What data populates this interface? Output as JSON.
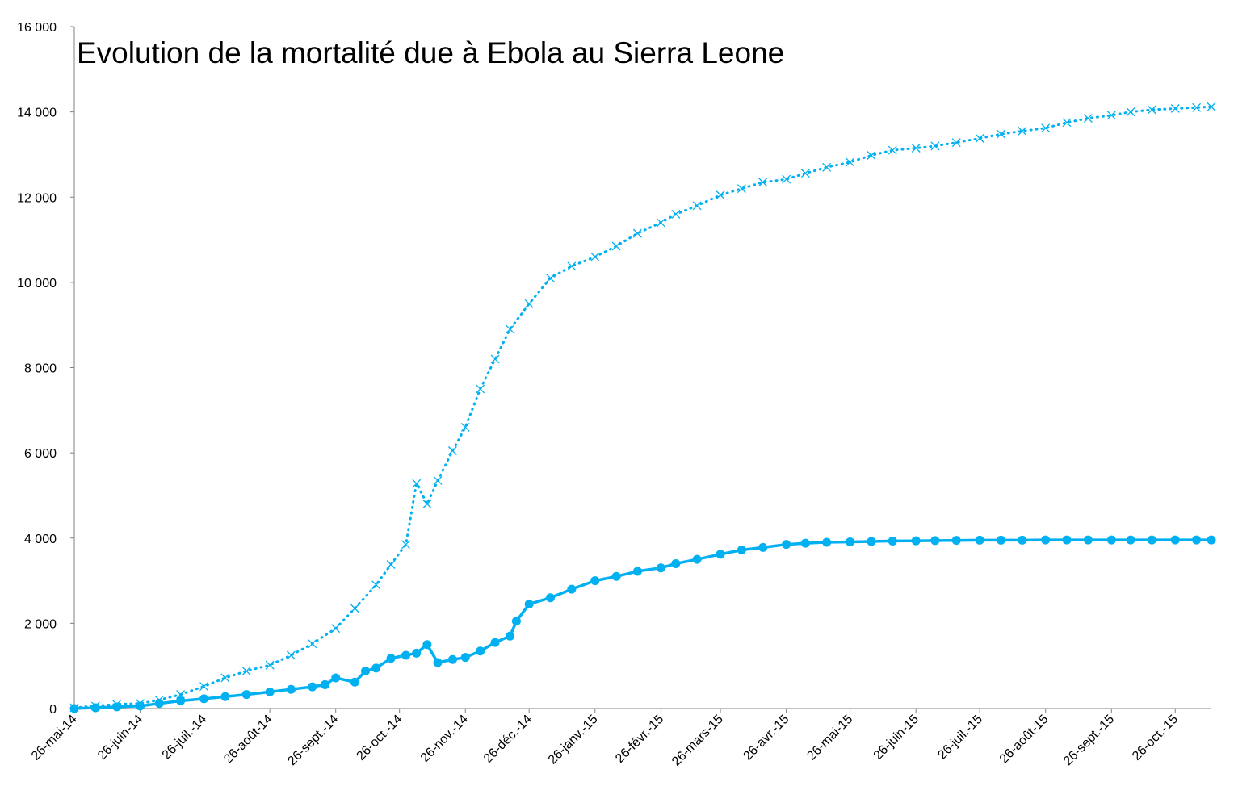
{
  "chart_data": {
    "type": "line",
    "title": "Evolution de la mortalité due à Ebola au Sierra Leone",
    "xlabel": "",
    "ylabel": "",
    "ylim": [
      0,
      16000
    ],
    "y_ticks": [
      0,
      2000,
      4000,
      6000,
      8000,
      10000,
      12000,
      14000,
      16000
    ],
    "y_tick_labels": [
      "0",
      "2 000",
      "4 000",
      "6 000",
      "8 000",
      "10 000",
      "12 000",
      "14 000",
      "16 000"
    ],
    "xlim": [
      "2014-05-26",
      "2015-11-12"
    ],
    "x_ticks": [
      "2014-05-26",
      "2014-06-26",
      "2014-07-26",
      "2014-08-26",
      "2014-09-26",
      "2014-10-26",
      "2014-11-26",
      "2014-12-26",
      "2015-01-26",
      "2015-02-26",
      "2015-03-26",
      "2015-04-26",
      "2015-05-26",
      "2015-06-26",
      "2015-07-26",
      "2015-08-26",
      "2015-09-26",
      "2015-10-26"
    ],
    "x_tick_labels": [
      "26-mai-14",
      "26-juin-14",
      "26-juil.-14",
      "26-août-14",
      "26-sept.-14",
      "26-oct.-14",
      "26-nov.-14",
      "26-déc.-14",
      "26-janv.-15",
      "26-févr.-15",
      "26-mars-15",
      "26-avr.-15",
      "26-mai-15",
      "26-juin-15",
      "26-juil.-15",
      "26-août-15",
      "26-sept.-15",
      "26-oct.-15"
    ],
    "grid": false,
    "legend": "none",
    "colors": {
      "series": "#00b0f0",
      "axis": "#808080"
    },
    "series": [
      {
        "style": "dotted-x",
        "x": [
          "2014-05-26",
          "2014-06-05",
          "2014-06-15",
          "2014-06-26",
          "2014-07-05",
          "2014-07-15",
          "2014-07-26",
          "2014-08-05",
          "2014-08-15",
          "2014-08-26",
          "2014-09-05",
          "2014-09-15",
          "2014-09-26",
          "2014-10-05",
          "2014-10-15",
          "2014-10-22",
          "2014-10-29",
          "2014-11-03",
          "2014-11-08",
          "2014-11-13",
          "2014-11-20",
          "2014-11-26",
          "2014-12-03",
          "2014-12-10",
          "2014-12-17",
          "2014-12-26",
          "2015-01-05",
          "2015-01-15",
          "2015-01-26",
          "2015-02-05",
          "2015-02-15",
          "2015-02-26",
          "2015-03-05",
          "2015-03-15",
          "2015-03-26",
          "2015-04-05",
          "2015-04-15",
          "2015-04-26",
          "2015-05-05",
          "2015-05-15",
          "2015-05-26",
          "2015-06-05",
          "2015-06-15",
          "2015-06-26",
          "2015-07-05",
          "2015-07-15",
          "2015-07-26",
          "2015-08-05",
          "2015-08-15",
          "2015-08-26",
          "2015-09-05",
          "2015-09-15",
          "2015-09-26",
          "2015-10-05",
          "2015-10-15",
          "2015-10-26",
          "2015-11-05",
          "2015-11-12"
        ],
        "y": [
          20,
          60,
          100,
          120,
          200,
          330,
          520,
          720,
          880,
          1020,
          1250,
          1520,
          1880,
          2350,
          2900,
          3380,
          3850,
          5280,
          4800,
          5350,
          6050,
          6600,
          7500,
          8200,
          8900,
          9500,
          10100,
          10380,
          10600,
          10850,
          11150,
          11400,
          11600,
          11800,
          12050,
          12200,
          12350,
          12420,
          12560,
          12700,
          12820,
          12980,
          13100,
          13150,
          13200,
          13280,
          13380,
          13480,
          13550,
          13620,
          13750,
          13850,
          13920,
          14000,
          14050,
          14080,
          14100,
          14120
        ]
      },
      {
        "style": "solid-dot",
        "x": [
          "2014-05-26",
          "2014-06-05",
          "2014-06-15",
          "2014-06-26",
          "2014-07-05",
          "2014-07-15",
          "2014-07-26",
          "2014-08-05",
          "2014-08-15",
          "2014-08-26",
          "2014-09-05",
          "2014-09-15",
          "2014-09-21",
          "2014-09-26",
          "2014-10-05",
          "2014-10-10",
          "2014-10-15",
          "2014-10-22",
          "2014-10-29",
          "2014-11-03",
          "2014-11-08",
          "2014-11-13",
          "2014-11-20",
          "2014-11-26",
          "2014-12-03",
          "2014-12-10",
          "2014-12-17",
          "2014-12-20",
          "2014-12-26",
          "2015-01-05",
          "2015-01-15",
          "2015-01-26",
          "2015-02-05",
          "2015-02-15",
          "2015-02-26",
          "2015-03-05",
          "2015-03-15",
          "2015-03-26",
          "2015-04-05",
          "2015-04-15",
          "2015-04-26",
          "2015-05-05",
          "2015-05-15",
          "2015-05-26",
          "2015-06-05",
          "2015-06-15",
          "2015-06-26",
          "2015-07-05",
          "2015-07-15",
          "2015-07-26",
          "2015-08-05",
          "2015-08-15",
          "2015-08-26",
          "2015-09-05",
          "2015-09-15",
          "2015-09-26",
          "2015-10-05",
          "2015-10-15",
          "2015-10-26",
          "2015-11-05",
          "2015-11-12"
        ],
        "y": [
          0,
          20,
          40,
          60,
          120,
          180,
          230,
          280,
          330,
          390,
          450,
          510,
          560,
          720,
          620,
          880,
          950,
          1180,
          1250,
          1300,
          1500,
          1080,
          1150,
          1200,
          1350,
          1550,
          1700,
          2050,
          2450,
          2600,
          2800,
          3000,
          3100,
          3220,
          3300,
          3400,
          3500,
          3620,
          3720,
          3780,
          3850,
          3880,
          3900,
          3910,
          3920,
          3930,
          3935,
          3940,
          3945,
          3950,
          3950,
          3950,
          3955,
          3955,
          3955,
          3955,
          3955,
          3955,
          3955,
          3955,
          3955
        ]
      }
    ]
  }
}
